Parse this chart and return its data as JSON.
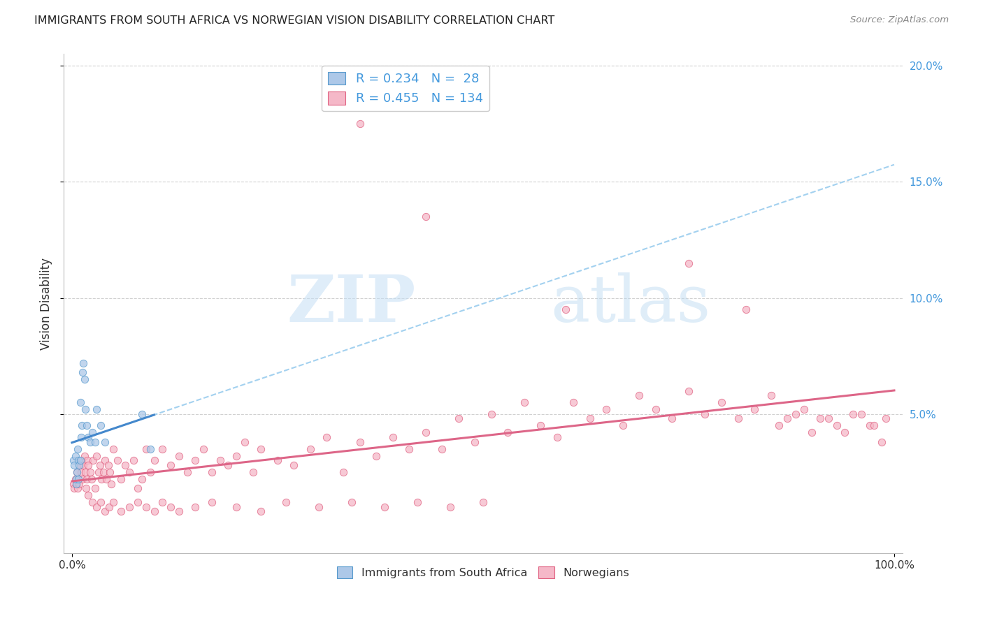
{
  "title": "IMMIGRANTS FROM SOUTH AFRICA VS NORWEGIAN VISION DISABILITY CORRELATION CHART",
  "source": "Source: ZipAtlas.com",
  "ylabel": "Vision Disability",
  "r1": "0.234",
  "n1": "28",
  "r2": "0.455",
  "n2": "134",
  "color_blue_fill": "#adc8e8",
  "color_blue_edge": "#5599cc",
  "color_pink_fill": "#f5b8c8",
  "color_pink_edge": "#e06080",
  "color_trend_blue_solid": "#4488cc",
  "color_trend_blue_dash": "#99ccee",
  "color_trend_pink_solid": "#dd6688",
  "watermark_color": "#d0e8f5",
  "grid_color": "#cccccc",
  "tick_color": "#4499dd",
  "label_color": "#333333",
  "bg_color": "#ffffff",
  "legend1_label": "Immigrants from South Africa",
  "legend2_label": "Norwegians",
  "blue_x": [
    0.002,
    0.003,
    0.004,
    0.005,
    0.005,
    0.006,
    0.007,
    0.008,
    0.008,
    0.009,
    0.01,
    0.01,
    0.011,
    0.012,
    0.013,
    0.014,
    0.015,
    0.016,
    0.018,
    0.02,
    0.022,
    0.025,
    0.028,
    0.03,
    0.035,
    0.04,
    0.085,
    0.095
  ],
  "blue_y": [
    0.03,
    0.028,
    0.032,
    0.02,
    0.022,
    0.025,
    0.035,
    0.03,
    0.022,
    0.028,
    0.055,
    0.03,
    0.04,
    0.045,
    0.068,
    0.072,
    0.065,
    0.052,
    0.045,
    0.04,
    0.038,
    0.042,
    0.038,
    0.052,
    0.045,
    0.038,
    0.05,
    0.035
  ],
  "pink_x": [
    0.002,
    0.003,
    0.004,
    0.005,
    0.006,
    0.007,
    0.008,
    0.009,
    0.01,
    0.011,
    0.012,
    0.013,
    0.014,
    0.015,
    0.016,
    0.017,
    0.018,
    0.019,
    0.02,
    0.022,
    0.024,
    0.026,
    0.028,
    0.03,
    0.032,
    0.034,
    0.036,
    0.038,
    0.04,
    0.042,
    0.044,
    0.046,
    0.048,
    0.05,
    0.055,
    0.06,
    0.065,
    0.07,
    0.075,
    0.08,
    0.085,
    0.09,
    0.095,
    0.1,
    0.11,
    0.12,
    0.13,
    0.14,
    0.15,
    0.16,
    0.17,
    0.18,
    0.19,
    0.2,
    0.21,
    0.22,
    0.23,
    0.25,
    0.27,
    0.29,
    0.31,
    0.33,
    0.35,
    0.37,
    0.39,
    0.41,
    0.43,
    0.45,
    0.47,
    0.49,
    0.51,
    0.53,
    0.55,
    0.57,
    0.59,
    0.61,
    0.63,
    0.65,
    0.67,
    0.69,
    0.71,
    0.73,
    0.75,
    0.77,
    0.79,
    0.81,
    0.83,
    0.85,
    0.87,
    0.89,
    0.91,
    0.93,
    0.95,
    0.97,
    0.99,
    0.35,
    0.43,
    0.6,
    0.75,
    0.82,
    0.86,
    0.88,
    0.9,
    0.92,
    0.94,
    0.96,
    0.975,
    0.985,
    0.02,
    0.025,
    0.03,
    0.035,
    0.04,
    0.045,
    0.05,
    0.06,
    0.07,
    0.08,
    0.09,
    0.1,
    0.11,
    0.12,
    0.13,
    0.15,
    0.17,
    0.2,
    0.23,
    0.26,
    0.3,
    0.34,
    0.38,
    0.42,
    0.46,
    0.5
  ],
  "pink_y": [
    0.02,
    0.018,
    0.022,
    0.02,
    0.025,
    0.018,
    0.022,
    0.02,
    0.028,
    0.025,
    0.03,
    0.022,
    0.028,
    0.032,
    0.025,
    0.018,
    0.022,
    0.03,
    0.028,
    0.025,
    0.022,
    0.03,
    0.018,
    0.032,
    0.025,
    0.028,
    0.022,
    0.025,
    0.03,
    0.022,
    0.028,
    0.025,
    0.02,
    0.035,
    0.03,
    0.022,
    0.028,
    0.025,
    0.03,
    0.018,
    0.022,
    0.035,
    0.025,
    0.03,
    0.035,
    0.028,
    0.032,
    0.025,
    0.03,
    0.035,
    0.025,
    0.03,
    0.028,
    0.032,
    0.038,
    0.025,
    0.035,
    0.03,
    0.028,
    0.035,
    0.04,
    0.025,
    0.038,
    0.032,
    0.04,
    0.035,
    0.042,
    0.035,
    0.048,
    0.038,
    0.05,
    0.042,
    0.055,
    0.045,
    0.04,
    0.055,
    0.048,
    0.052,
    0.045,
    0.058,
    0.052,
    0.048,
    0.06,
    0.05,
    0.055,
    0.048,
    0.052,
    0.058,
    0.048,
    0.052,
    0.048,
    0.045,
    0.05,
    0.045,
    0.048,
    0.175,
    0.135,
    0.095,
    0.115,
    0.095,
    0.045,
    0.05,
    0.042,
    0.048,
    0.042,
    0.05,
    0.045,
    0.038,
    0.015,
    0.012,
    0.01,
    0.012,
    0.008,
    0.01,
    0.012,
    0.008,
    0.01,
    0.012,
    0.01,
    0.008,
    0.012,
    0.01,
    0.008,
    0.01,
    0.012,
    0.01,
    0.008,
    0.012,
    0.01,
    0.012,
    0.01,
    0.012,
    0.01,
    0.012
  ]
}
